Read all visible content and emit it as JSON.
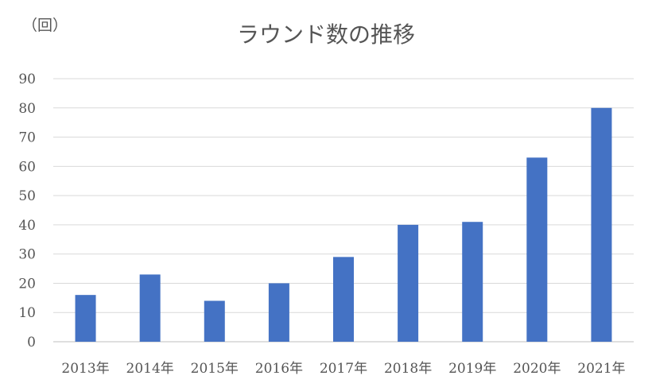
{
  "chart_data": {
    "type": "bar",
    "title": "ラウンド数の推移",
    "unit_label": "（回）",
    "xlabel": "",
    "ylabel": "",
    "categories": [
      "2013年",
      "2014年",
      "2015年",
      "2016年",
      "2017年",
      "2018年",
      "2019年",
      "2020年",
      "2021年"
    ],
    "series": [
      {
        "values": [
          16,
          23,
          14,
          20,
          29,
          40,
          41,
          63,
          80
        ],
        "color": "#4472c4"
      }
    ],
    "ylim": [
      0,
      90
    ],
    "yticks": [
      0,
      10,
      20,
      30,
      40,
      50,
      60,
      70,
      80,
      90
    ],
    "grid": true,
    "legend": "none"
  }
}
